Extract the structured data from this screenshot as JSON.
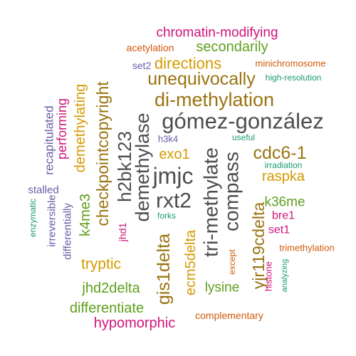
{
  "colors": {
    "gray": "#4d4d4d",
    "gold": "#d49a00",
    "olive": "#9a7412",
    "green": "#5f9f1d",
    "magenta": "#d0147a",
    "orange": "#d05a0b",
    "purple": "#6a5ca8",
    "teal": "#1a9a74"
  },
  "words": [
    {
      "text": "chromatin-modifying",
      "color": "magenta"
    },
    {
      "text": "acetylation",
      "color": "orange"
    },
    {
      "text": "secondarily",
      "color": "green"
    },
    {
      "text": "set2",
      "color": "purple"
    },
    {
      "text": "minichromosome",
      "color": "orange"
    },
    {
      "text": "directions",
      "color": "gold"
    },
    {
      "text": "high-resolution",
      "color": "teal"
    },
    {
      "text": "unequivocally",
      "color": "olive"
    },
    {
      "text": "di-methylation",
      "color": "olive"
    },
    {
      "text": "gómez-gonzález",
      "color": "gray"
    },
    {
      "text": "h3k4",
      "color": "purple"
    },
    {
      "text": "useful",
      "color": "teal"
    },
    {
      "text": "exo1",
      "color": "gold"
    },
    {
      "text": "cdc6-1",
      "color": "olive"
    },
    {
      "text": "irradiation",
      "color": "teal"
    },
    {
      "text": "jmjc",
      "color": "gray"
    },
    {
      "text": "raspka",
      "color": "gold"
    },
    {
      "text": "rxt2",
      "color": "gray"
    },
    {
      "text": "k36me",
      "color": "green"
    },
    {
      "text": "bre1",
      "color": "magenta"
    },
    {
      "text": "set1",
      "color": "magenta"
    },
    {
      "text": "forks",
      "color": "teal"
    },
    {
      "text": "trimethylation",
      "color": "orange"
    },
    {
      "text": "tryptic",
      "color": "gold"
    },
    {
      "text": "lysine",
      "color": "green"
    },
    {
      "text": "jhd2delta",
      "color": "green"
    },
    {
      "text": "differentiate",
      "color": "green"
    },
    {
      "text": "complementary",
      "color": "orange"
    },
    {
      "text": "hypomorphic",
      "color": "magenta"
    },
    {
      "text": "stalled",
      "color": "purple"
    },
    {
      "text": "recapitulated",
      "color": "purple"
    },
    {
      "text": "performing",
      "color": "magenta"
    },
    {
      "text": "demethylating",
      "color": "gold"
    },
    {
      "text": "enzymatic",
      "color": "teal"
    },
    {
      "text": "irreversible",
      "color": "purple"
    },
    {
      "text": "differentially",
      "color": "purple"
    },
    {
      "text": "k4me3",
      "color": "green"
    },
    {
      "text": "demethylase",
      "color": "gray"
    },
    {
      "text": "checkpointcopyright",
      "color": "olive"
    },
    {
      "text": "h2bk123",
      "color": "gray"
    },
    {
      "text": "jhd1",
      "color": "magenta"
    },
    {
      "text": "gis1delta",
      "color": "olive"
    },
    {
      "text": "ecm5delta",
      "color": "gold"
    },
    {
      "text": "tri-methylate",
      "color": "gray"
    },
    {
      "text": "compass",
      "color": "gray"
    },
    {
      "text": "yjr119cdelta",
      "color": "olive"
    },
    {
      "text": "except",
      "color": "orange"
    },
    {
      "text": "histone",
      "color": "magenta"
    },
    {
      "text": "analyzing",
      "color": "teal"
    }
  ]
}
